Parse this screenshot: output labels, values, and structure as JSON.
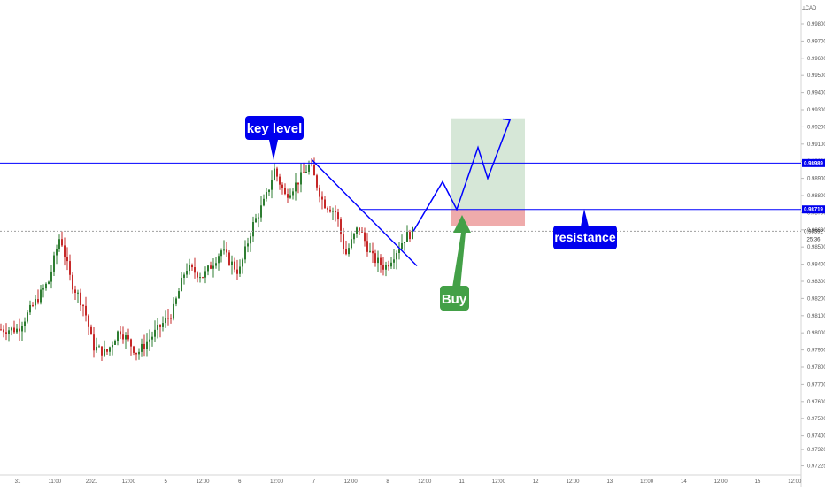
{
  "chart_data": {
    "type": "candlestick",
    "currency_label": "CAD",
    "ylim": [
      0.97225,
      1.0
    ],
    "price_ticks": [
      0.998,
      0.997,
      0.996,
      0.995,
      0.994,
      0.993,
      0.992,
      0.991,
      0.99,
      0.989,
      0.988,
      0.987,
      0.986,
      0.985,
      0.984,
      0.983,
      0.982,
      0.981,
      0.98,
      0.979,
      0.978,
      0.977,
      0.976,
      0.975,
      0.974,
      0.9732,
      0.97225
    ],
    "time_ticks": [
      "31",
      "11:00",
      "2021",
      "12:00",
      "5",
      "12:00",
      "6",
      "12:00",
      "7",
      "12:00",
      "8",
      "12:00",
      "11",
      "12:00",
      "12",
      "12:00",
      "13",
      "12:00",
      "14",
      "12:00",
      "15",
      "12:00"
    ],
    "key_level_price": 0.98989,
    "key_level_label": "0.98989",
    "resistance_price": 0.98719,
    "resistance_label": "0.98719",
    "last_price": 0.98592,
    "last_price_label": "0.98592",
    "countdown_label": "25:36",
    "stop_loss_price": 0.9862,
    "take_profit_price": 0.9925,
    "projection_path": [
      [
        0.98592
      ],
      [
        0.9888
      ],
      [
        0.98719
      ],
      [
        0.9908
      ],
      [
        0.989
      ],
      [
        0.9924
      ]
    ],
    "trendline": {
      "start_price": 0.9901,
      "end_price": 0.9839
    },
    "color_up": "#2e7d32",
    "color_down": "#c62828",
    "color_line": "#0000ff",
    "color_buy": "#43a047"
  },
  "annotations": {
    "key_level": "key level",
    "resistance": "resistance",
    "buy": "Buy"
  },
  "ui": {
    "top_icon": "⟂"
  }
}
